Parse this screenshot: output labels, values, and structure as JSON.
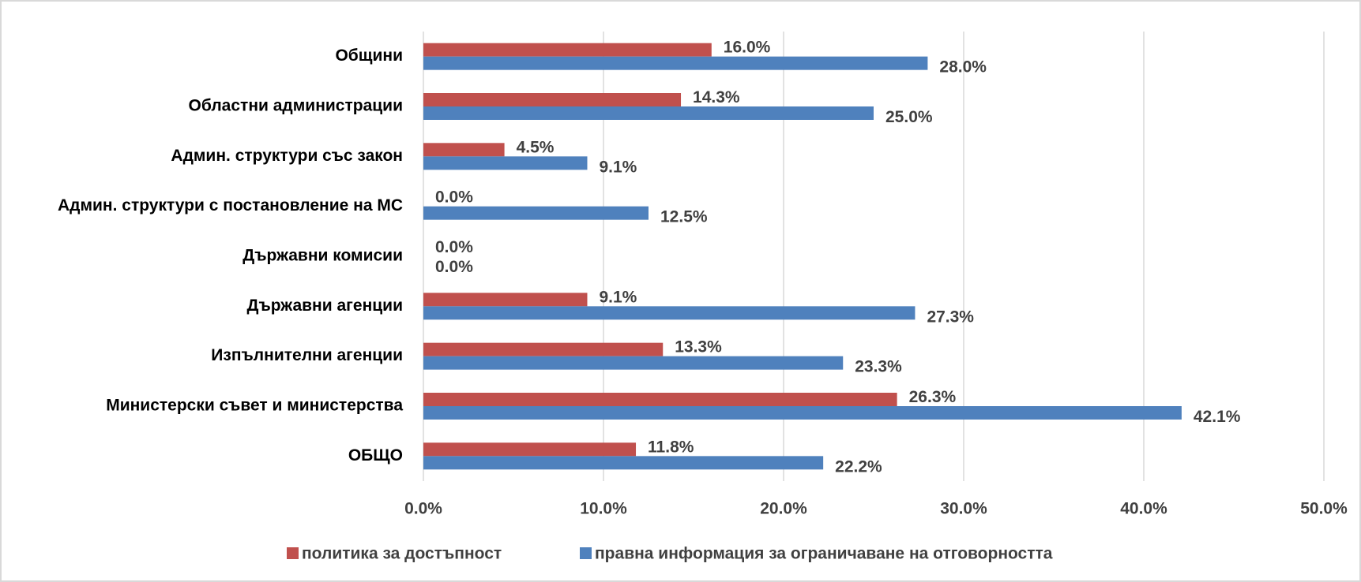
{
  "chart_data": {
    "type": "bar",
    "orientation": "horizontal",
    "categories": [
      "Общини",
      "Областни администрации",
      "Админ. структури със закон",
      "Админ. структури с постановление на МС",
      "Държавни комисии",
      "Държавни агенции",
      "Изпълнителни агенции",
      "Министерски съвет и министерства",
      "ОБЩО"
    ],
    "series": [
      {
        "name": "политика за достъпност",
        "color": "#c0504d",
        "values": [
          16.0,
          14.3,
          4.5,
          0.0,
          0.0,
          9.1,
          13.3,
          26.3,
          11.8
        ],
        "value_labels": [
          "16.0%",
          "14.3%",
          "4.5%",
          "0.0%",
          "0.0%",
          "9.1%",
          "13.3%",
          "26.3%",
          "11.8%"
        ]
      },
      {
        "name": "правна информация за ограничаване на отговорността",
        "color": "#4f81bd",
        "values": [
          28.0,
          25.0,
          9.1,
          12.5,
          0.0,
          27.3,
          23.3,
          42.1,
          22.2
        ],
        "value_labels": [
          "28.0%",
          "25.0%",
          "9.1%",
          "12.5%",
          "0.0%",
          "27.3%",
          "23.3%",
          "42.1%",
          "22.2%"
        ]
      }
    ],
    "xlim": [
      0,
      50
    ],
    "xticks": [
      {
        "value": 0,
        "label": "0.0%"
      },
      {
        "value": 10,
        "label": "10.0%"
      },
      {
        "value": 20,
        "label": "20.0%"
      },
      {
        "value": 30,
        "label": "30.0%"
      },
      {
        "value": 40,
        "label": "40.0%"
      },
      {
        "value": 50,
        "label": "50.0%"
      }
    ],
    "grid": true,
    "legend": "bottom"
  }
}
